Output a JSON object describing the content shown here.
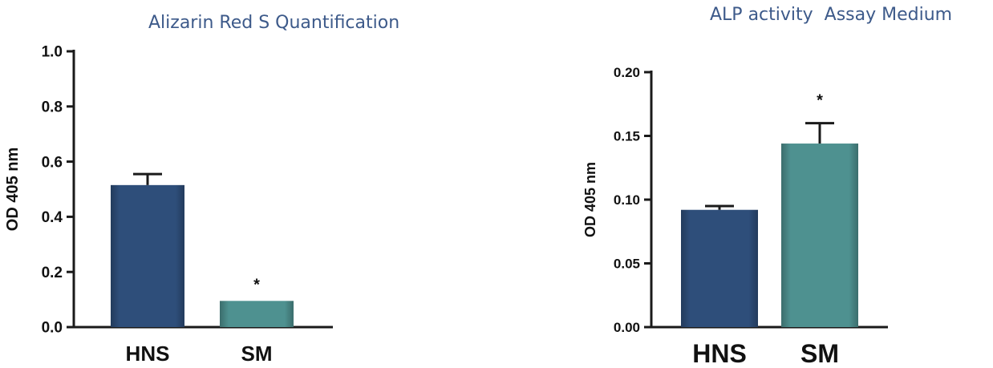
{
  "chart_data": [
    {
      "type": "bar",
      "title": "Alizarin Red S Quantification",
      "ylabel": "OD 405 nm",
      "xlabel": "",
      "categories": [
        "HNS",
        "SM"
      ],
      "values": [
        0.515,
        0.095
      ],
      "errors": [
        0.04,
        0.0
      ],
      "significance": [
        "",
        "*"
      ],
      "colors": [
        "#2e4e7a",
        "#4e9190"
      ],
      "ylim": [
        0,
        1.0
      ],
      "yticks": [
        "0.0",
        "0.2",
        "0.4",
        "0.6",
        "0.8",
        "1.0"
      ],
      "grid": false,
      "legend": "none"
    },
    {
      "type": "bar",
      "title": "ALP activity  Assay Medium",
      "ylabel": "OD 405 nm",
      "xlabel": "",
      "categories": [
        "HNS",
        "SM"
      ],
      "values": [
        0.092,
        0.144
      ],
      "errors": [
        0.003,
        0.016
      ],
      "significance": [
        "",
        "*"
      ],
      "colors": [
        "#2e4e7a",
        "#4e9190"
      ],
      "ylim": [
        0,
        0.2
      ],
      "yticks": [
        "0.00",
        "0.05",
        "0.10",
        "0.15",
        "0.20"
      ],
      "grid": false,
      "legend": "none"
    }
  ]
}
